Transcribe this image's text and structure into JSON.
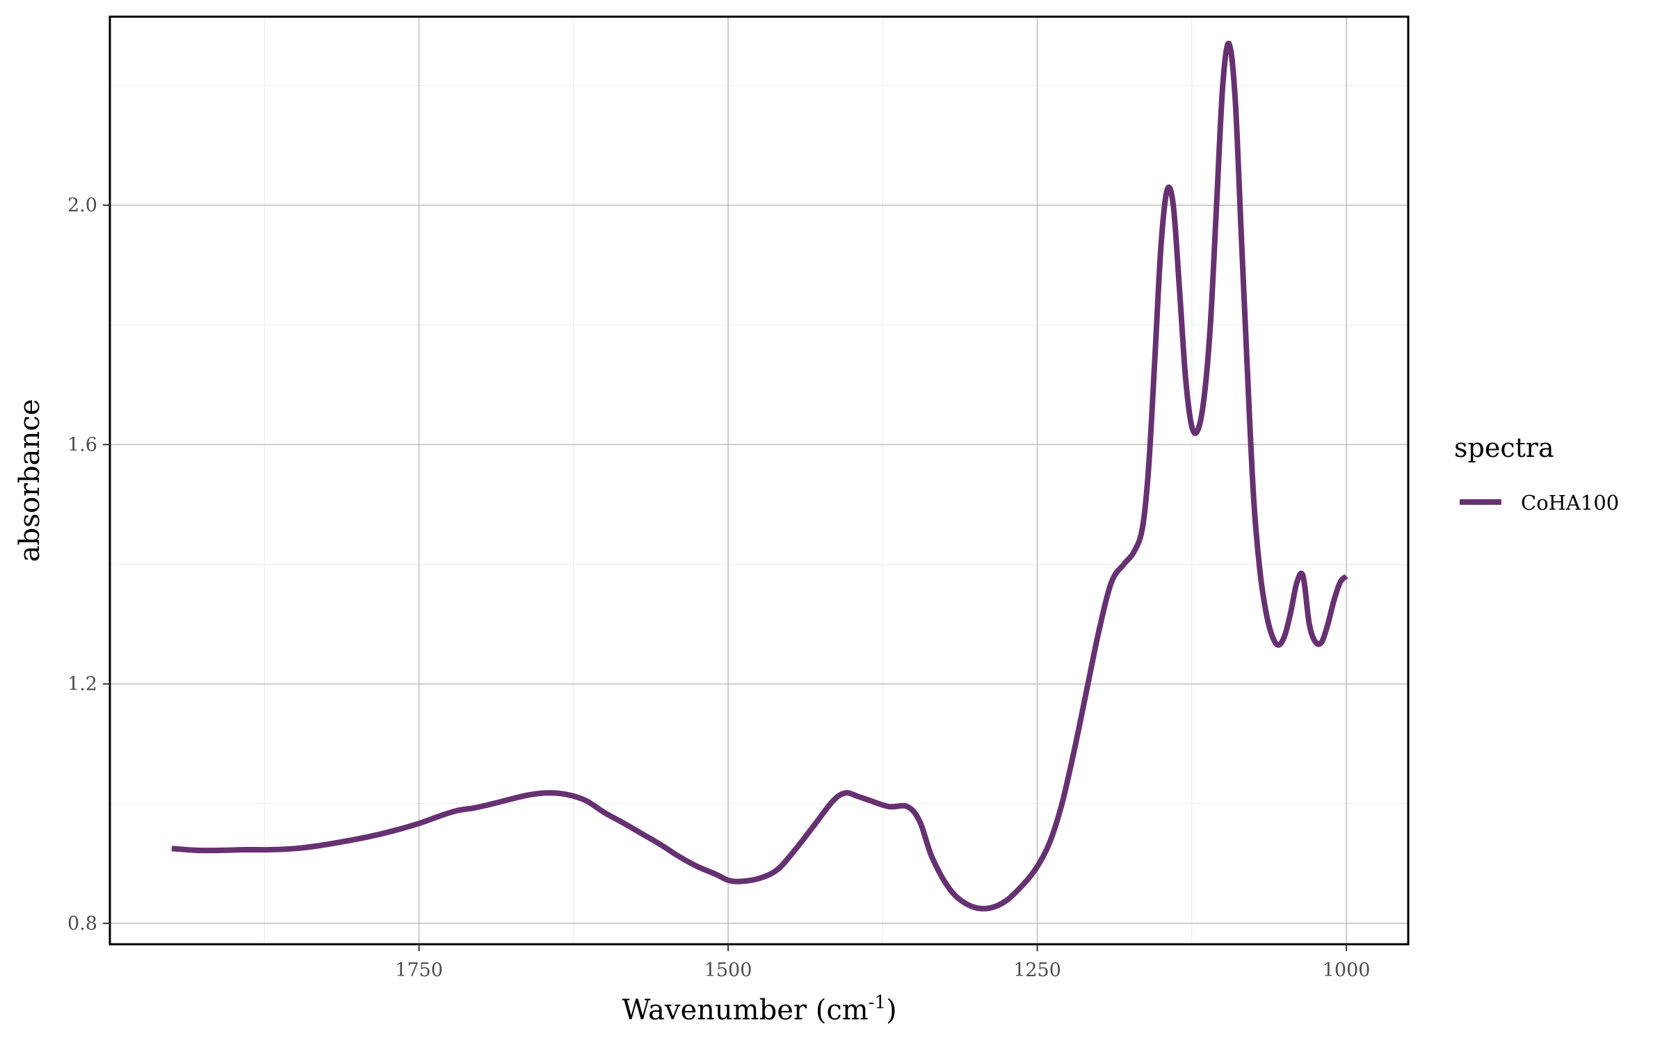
{
  "chart_data": {
    "type": "line",
    "xlabel": "Wavenumber (cm",
    "xlabel_superscript": "-1",
    "xlabel_suffix": ")",
    "ylabel": "absorbance",
    "xlim": [
      2000,
      950
    ],
    "x_reversed": true,
    "ylim": [
      0.765,
      2.315
    ],
    "x_ticks": [
      1750,
      1500,
      1250,
      1000
    ],
    "x_tick_labels": [
      "1750",
      "1500",
      "1250",
      "1000"
    ],
    "x_minor_ticks": [
      1875,
      1625,
      1375,
      1125
    ],
    "y_ticks": [
      0.8,
      1.2,
      1.6,
      2.0
    ],
    "y_tick_labels": [
      "0.8",
      "1.2",
      "1.6",
      "2.0"
    ],
    "y_minor_ticks": [
      1.0,
      1.4,
      1.8,
      2.2
    ],
    "grid": true,
    "legend": {
      "title": "spectra",
      "placement": "right"
    },
    "series": [
      {
        "name": "CoHA100",
        "color": "#663171",
        "x": [
          1950,
          1930,
          1910,
          1890,
          1870,
          1850,
          1830,
          1810,
          1790,
          1770,
          1750,
          1735,
          1720,
          1705,
          1690,
          1675,
          1660,
          1645,
          1630,
          1615,
          1600,
          1585,
          1570,
          1555,
          1540,
          1525,
          1510,
          1500,
          1490,
          1475,
          1460,
          1445,
          1430,
          1415,
          1405,
          1395,
          1385,
          1370,
          1355,
          1345,
          1335,
          1320,
          1305,
          1290,
          1275,
          1260,
          1250,
          1240,
          1230,
          1220,
          1210,
          1200,
          1190,
          1180,
          1172,
          1165,
          1160,
          1155,
          1150,
          1145,
          1140,
          1135,
          1130,
          1125,
          1120,
          1115,
          1110,
          1105,
          1100,
          1095,
          1090,
          1085,
          1080,
          1075,
          1070,
          1065,
          1060,
          1055,
          1050,
          1045,
          1040,
          1035,
          1030,
          1025,
          1020,
          1015,
          1010,
          1005,
          1000
        ],
        "values": [
          0.925,
          0.922,
          0.922,
          0.923,
          0.923,
          0.925,
          0.93,
          0.937,
          0.945,
          0.955,
          0.967,
          0.978,
          0.988,
          0.993,
          1.0,
          1.008,
          1.015,
          1.018,
          1.015,
          1.005,
          0.985,
          0.968,
          0.95,
          0.932,
          0.912,
          0.895,
          0.882,
          0.872,
          0.87,
          0.875,
          0.89,
          0.925,
          0.965,
          1.005,
          1.018,
          1.012,
          1.005,
          0.995,
          0.995,
          0.97,
          0.91,
          0.855,
          0.83,
          0.825,
          0.838,
          0.868,
          0.895,
          0.935,
          1.0,
          1.09,
          1.19,
          1.29,
          1.37,
          1.4,
          1.42,
          1.46,
          1.56,
          1.74,
          1.93,
          2.025,
          2.0,
          1.86,
          1.71,
          1.63,
          1.625,
          1.68,
          1.8,
          2.0,
          2.2,
          2.27,
          2.18,
          1.95,
          1.72,
          1.51,
          1.39,
          1.32,
          1.28,
          1.265,
          1.28,
          1.32,
          1.37,
          1.38,
          1.3,
          1.27,
          1.27,
          1.3,
          1.34,
          1.37,
          1.38
        ]
      }
    ]
  }
}
